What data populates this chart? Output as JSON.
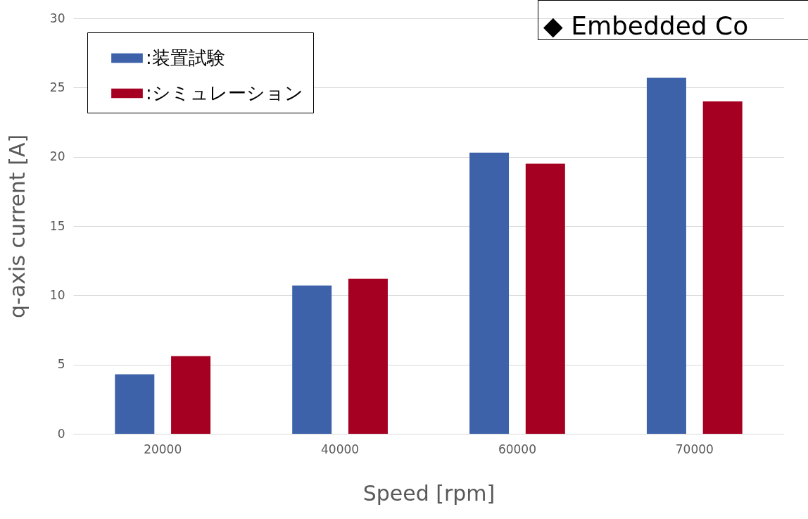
{
  "chart_data": {
    "type": "bar",
    "xlabel": "Speed [rpm]",
    "ylabel": "q-axis current [A]",
    "categories": [
      "20000",
      "40000",
      "60000",
      "70000"
    ],
    "series": [
      {
        "name": ":装置試験",
        "color": "#3d62aa",
        "values": [
          4.3,
          10.7,
          20.3,
          25.7
        ]
      },
      {
        "name": ":シミュレーション",
        "color": "#a50021",
        "values": [
          5.6,
          11.2,
          19.5,
          24.0
        ]
      }
    ],
    "ylim": [
      0,
      30
    ],
    "yticks": [
      0,
      5,
      10,
      15,
      20,
      25,
      30
    ],
    "grid": "y",
    "legend": "top left",
    "annotations": [
      "◆ Embedded Co"
    ]
  }
}
